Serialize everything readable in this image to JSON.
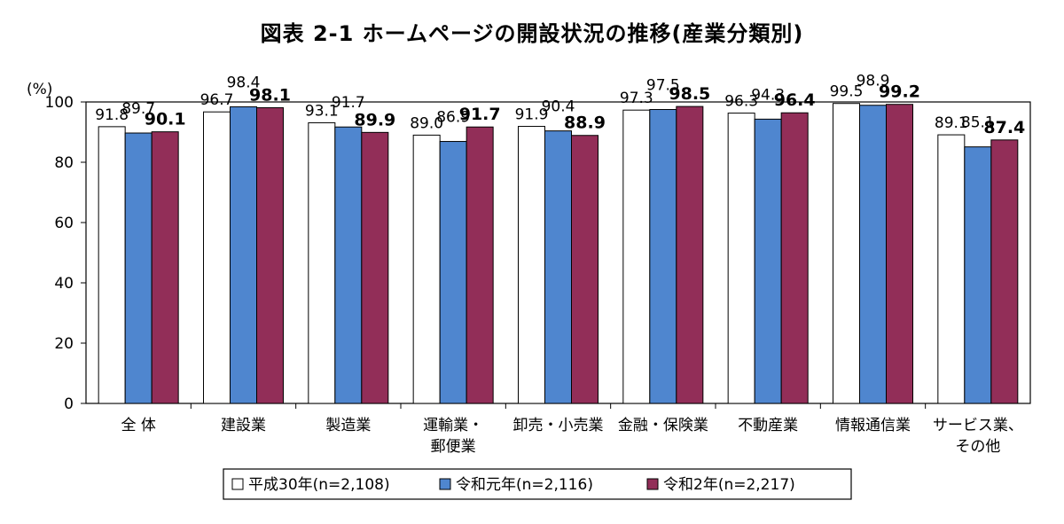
{
  "title": "図表 2-1  ホームページの開設状況の推移(産業分類別)",
  "chart_data": {
    "type": "bar",
    "title": "図表 2-1  ホームページの開設状況の推移(産業分類別)",
    "ylabel": "(%)",
    "xlabel": "",
    "ylim": [
      0,
      100
    ],
    "yticks": [
      0,
      20,
      40,
      60,
      80,
      100
    ],
    "grid": false,
    "legend_position": "bottom",
    "categories": [
      [
        "全 体"
      ],
      [
        "建設業"
      ],
      [
        "製造業"
      ],
      [
        "運輸業・",
        "郵便業"
      ],
      [
        "卸売・小売業"
      ],
      [
        "金融・保険業"
      ],
      [
        "不動産業"
      ],
      [
        "情報通信業"
      ],
      [
        "サービス業、",
        "その他"
      ]
    ],
    "series": [
      {
        "name": "平成30年(n=2,108)",
        "color": "#ffffff",
        "values": [
          91.8,
          96.7,
          93.1,
          89.0,
          91.9,
          97.3,
          96.3,
          99.5,
          89.1
        ]
      },
      {
        "name": "令和元年(n=2,116)",
        "color": "#4f86cf",
        "values": [
          89.7,
          98.4,
          91.7,
          86.9,
          90.4,
          97.5,
          94.3,
          98.9,
          85.1
        ]
      },
      {
        "name": "令和2年(n=2,217)",
        "color": "#922e58",
        "values": [
          90.1,
          98.1,
          89.9,
          91.7,
          88.9,
          98.5,
          96.4,
          99.2,
          87.4
        ]
      }
    ]
  }
}
